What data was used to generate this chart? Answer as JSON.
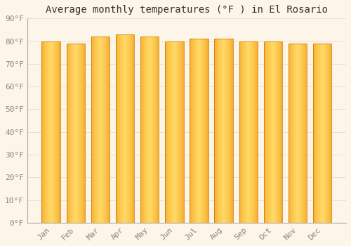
{
  "title": "Average monthly temperatures (°F ) in El Rosario",
  "months": [
    "Jan",
    "Feb",
    "Mar",
    "Apr",
    "May",
    "Jun",
    "Jul",
    "Aug",
    "Sep",
    "Oct",
    "Nov",
    "Dec"
  ],
  "values": [
    80,
    79,
    82,
    83,
    82,
    80,
    81,
    81,
    80,
    80,
    79,
    79
  ],
  "bar_color_center": "#FFD966",
  "bar_color_edge": "#F5A623",
  "bar_border_color": "#C87000",
  "background_color": "#FDF6E8",
  "grid_color": "#DDDDDD",
  "ylim": [
    0,
    90
  ],
  "yticks": [
    0,
    10,
    20,
    30,
    40,
    50,
    60,
    70,
    80,
    90
  ],
  "ytick_labels": [
    "0°F",
    "10°F",
    "20°F",
    "30°F",
    "40°F",
    "50°F",
    "60°F",
    "70°F",
    "80°F",
    "90°F"
  ],
  "title_fontsize": 10,
  "tick_fontsize": 8,
  "tick_color": "#888888",
  "spine_color": "#AAAAAA",
  "bar_width": 0.75,
  "n_gradient_strips": 40
}
